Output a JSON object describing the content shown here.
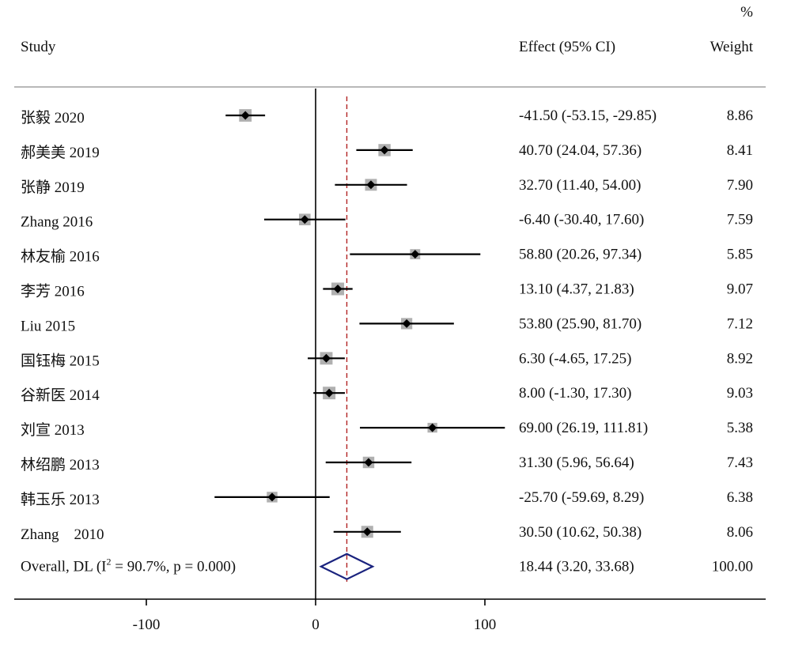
{
  "chart_data": {
    "type": "forest",
    "headers": {
      "study": "Study",
      "effect": "Effect (95% CI)",
      "weight": "Weight",
      "weight_unit": "%"
    },
    "studies": [
      {
        "label": "张毅 2020",
        "effect": -41.5,
        "lower": -53.15,
        "upper": -29.85,
        "ci_text": "-41.50 (-53.15, -29.85)",
        "weight": 8.86,
        "weight_text": "8.86"
      },
      {
        "label": "郝美美 2019",
        "effect": 40.7,
        "lower": 24.04,
        "upper": 57.36,
        "ci_text": "40.70 (24.04, 57.36)",
        "weight": 8.41,
        "weight_text": "8.41"
      },
      {
        "label": "张静 2019",
        "effect": 32.7,
        "lower": 11.4,
        "upper": 54.0,
        "ci_text": "32.70 (11.40, 54.00)",
        "weight": 7.9,
        "weight_text": "7.90"
      },
      {
        "label": "Zhang 2016",
        "effect": -6.4,
        "lower": -30.4,
        "upper": 17.6,
        "ci_text": "-6.40 (-30.40, 17.60)",
        "weight": 7.59,
        "weight_text": "7.59"
      },
      {
        "label": "林友榆 2016",
        "effect": 58.8,
        "lower": 20.26,
        "upper": 97.34,
        "ci_text": "58.80 (20.26, 97.34)",
        "weight": 5.85,
        "weight_text": "5.85"
      },
      {
        "label": "李芳 2016",
        "effect": 13.1,
        "lower": 4.37,
        "upper": 21.83,
        "ci_text": "13.10 (4.37, 21.83)",
        "weight": 9.07,
        "weight_text": "9.07"
      },
      {
        "label": "Liu 2015",
        "effect": 53.8,
        "lower": 25.9,
        "upper": 81.7,
        "ci_text": "53.80 (25.90, 81.70)",
        "weight": 7.12,
        "weight_text": "7.12"
      },
      {
        "label": "国钰梅 2015",
        "effect": 6.3,
        "lower": -4.65,
        "upper": 17.25,
        "ci_text": "6.30 (-4.65, 17.25)",
        "weight": 8.92,
        "weight_text": "8.92"
      },
      {
        "label": "谷新医 2014",
        "effect": 8.0,
        "lower": -1.3,
        "upper": 17.3,
        "ci_text": "8.00 (-1.30, 17.30)",
        "weight": 9.03,
        "weight_text": "9.03"
      },
      {
        "label": "刘宣 2013",
        "effect": 69.0,
        "lower": 26.19,
        "upper": 111.81,
        "ci_text": "69.00 (26.19, 111.81)",
        "weight": 5.38,
        "weight_text": "5.38"
      },
      {
        "label": "林绍鹏 2013",
        "effect": 31.3,
        "lower": 5.96,
        "upper": 56.64,
        "ci_text": "31.30 (5.96, 56.64)",
        "weight": 7.43,
        "weight_text": "7.43"
      },
      {
        "label": "韩玉乐 2013",
        "effect": -25.7,
        "lower": -59.69,
        "upper": 8.29,
        "ci_text": "-25.70 (-59.69, 8.29)",
        "weight": 6.38,
        "weight_text": "6.38"
      },
      {
        "label": "Zhang    2010",
        "effect": 30.5,
        "lower": 10.62,
        "upper": 50.38,
        "ci_text": "30.50 (10.62, 50.38)",
        "weight": 8.06,
        "weight_text": "8.06"
      }
    ],
    "overall": {
      "label_prefix": "Overall, DL (I",
      "label_sup": "2",
      "label_suffix": " = 90.7%, p = 0.000)",
      "effect": 18.44,
      "lower": 3.2,
      "upper": 33.68,
      "ci_text": "18.44 (3.20, 33.68)",
      "weight_text": "100.00"
    },
    "x_ticks": [
      {
        "value": -100,
        "label": "-100"
      },
      {
        "value": 0,
        "label": "0"
      },
      {
        "value": 100,
        "label": "100"
      }
    ],
    "xlim": [
      -170,
      270
    ],
    "null_line": 0,
    "colors": {
      "marker": "#000000",
      "weight_box": "#b0b0b0",
      "overall_diamond": "#1a237e",
      "overall_line": "#b22222",
      "axis": "#000000",
      "header_rule": "#b8b8b8"
    }
  }
}
